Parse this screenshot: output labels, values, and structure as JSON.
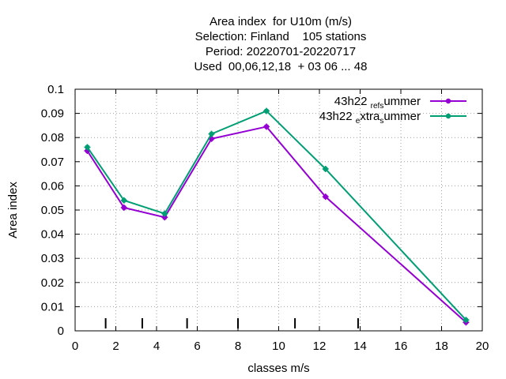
{
  "chart_data": {
    "type": "line",
    "title": [
      "Area index  for U10m (m/s)",
      "Selection: Finland    105 stations",
      "Period: 20220701-20220717",
      "Used  00,06,12,18  + 03 06 ... 48"
    ],
    "xlabel": "classes m/s",
    "ylabel": "Area index",
    "xlim": [
      0,
      20
    ],
    "ylim": [
      0,
      0.1
    ],
    "xticks": [
      "0",
      "2",
      "4",
      "6",
      "8",
      "10",
      "12",
      "14",
      "16",
      "18",
      "20"
    ],
    "yticks": [
      "0",
      "0.01",
      "0.02",
      "0.03",
      "0.04",
      "0.05",
      "0.06",
      "0.07",
      "0.08",
      "0.09",
      "0.1"
    ],
    "grid": true,
    "legend_position": "top-right",
    "class_boundaries": [
      1.5,
      3.3,
      5.5,
      8.0,
      10.8,
      13.9
    ],
    "series": [
      {
        "name": "43h22_ref_summer",
        "legend_parts": [
          "43h22 ",
          "ref",
          "s",
          "ummer"
        ],
        "color": "#9400d3",
        "x": [
          0.6,
          2.4,
          4.4,
          6.7,
          9.4,
          12.3,
          19.2
        ],
        "y": [
          0.0745,
          0.051,
          0.047,
          0.0795,
          0.0845,
          0.0555,
          0.0035
        ]
      },
      {
        "name": "43h22_extra_summer",
        "legend_parts": [
          "43h22 ",
          "e",
          "xtra",
          "s",
          "ummer"
        ],
        "color": "#009e73",
        "x": [
          0.6,
          2.4,
          4.4,
          6.7,
          9.4,
          12.3,
          19.2
        ],
        "y": [
          0.076,
          0.054,
          0.0485,
          0.0815,
          0.091,
          0.067,
          0.0045
        ]
      }
    ]
  }
}
